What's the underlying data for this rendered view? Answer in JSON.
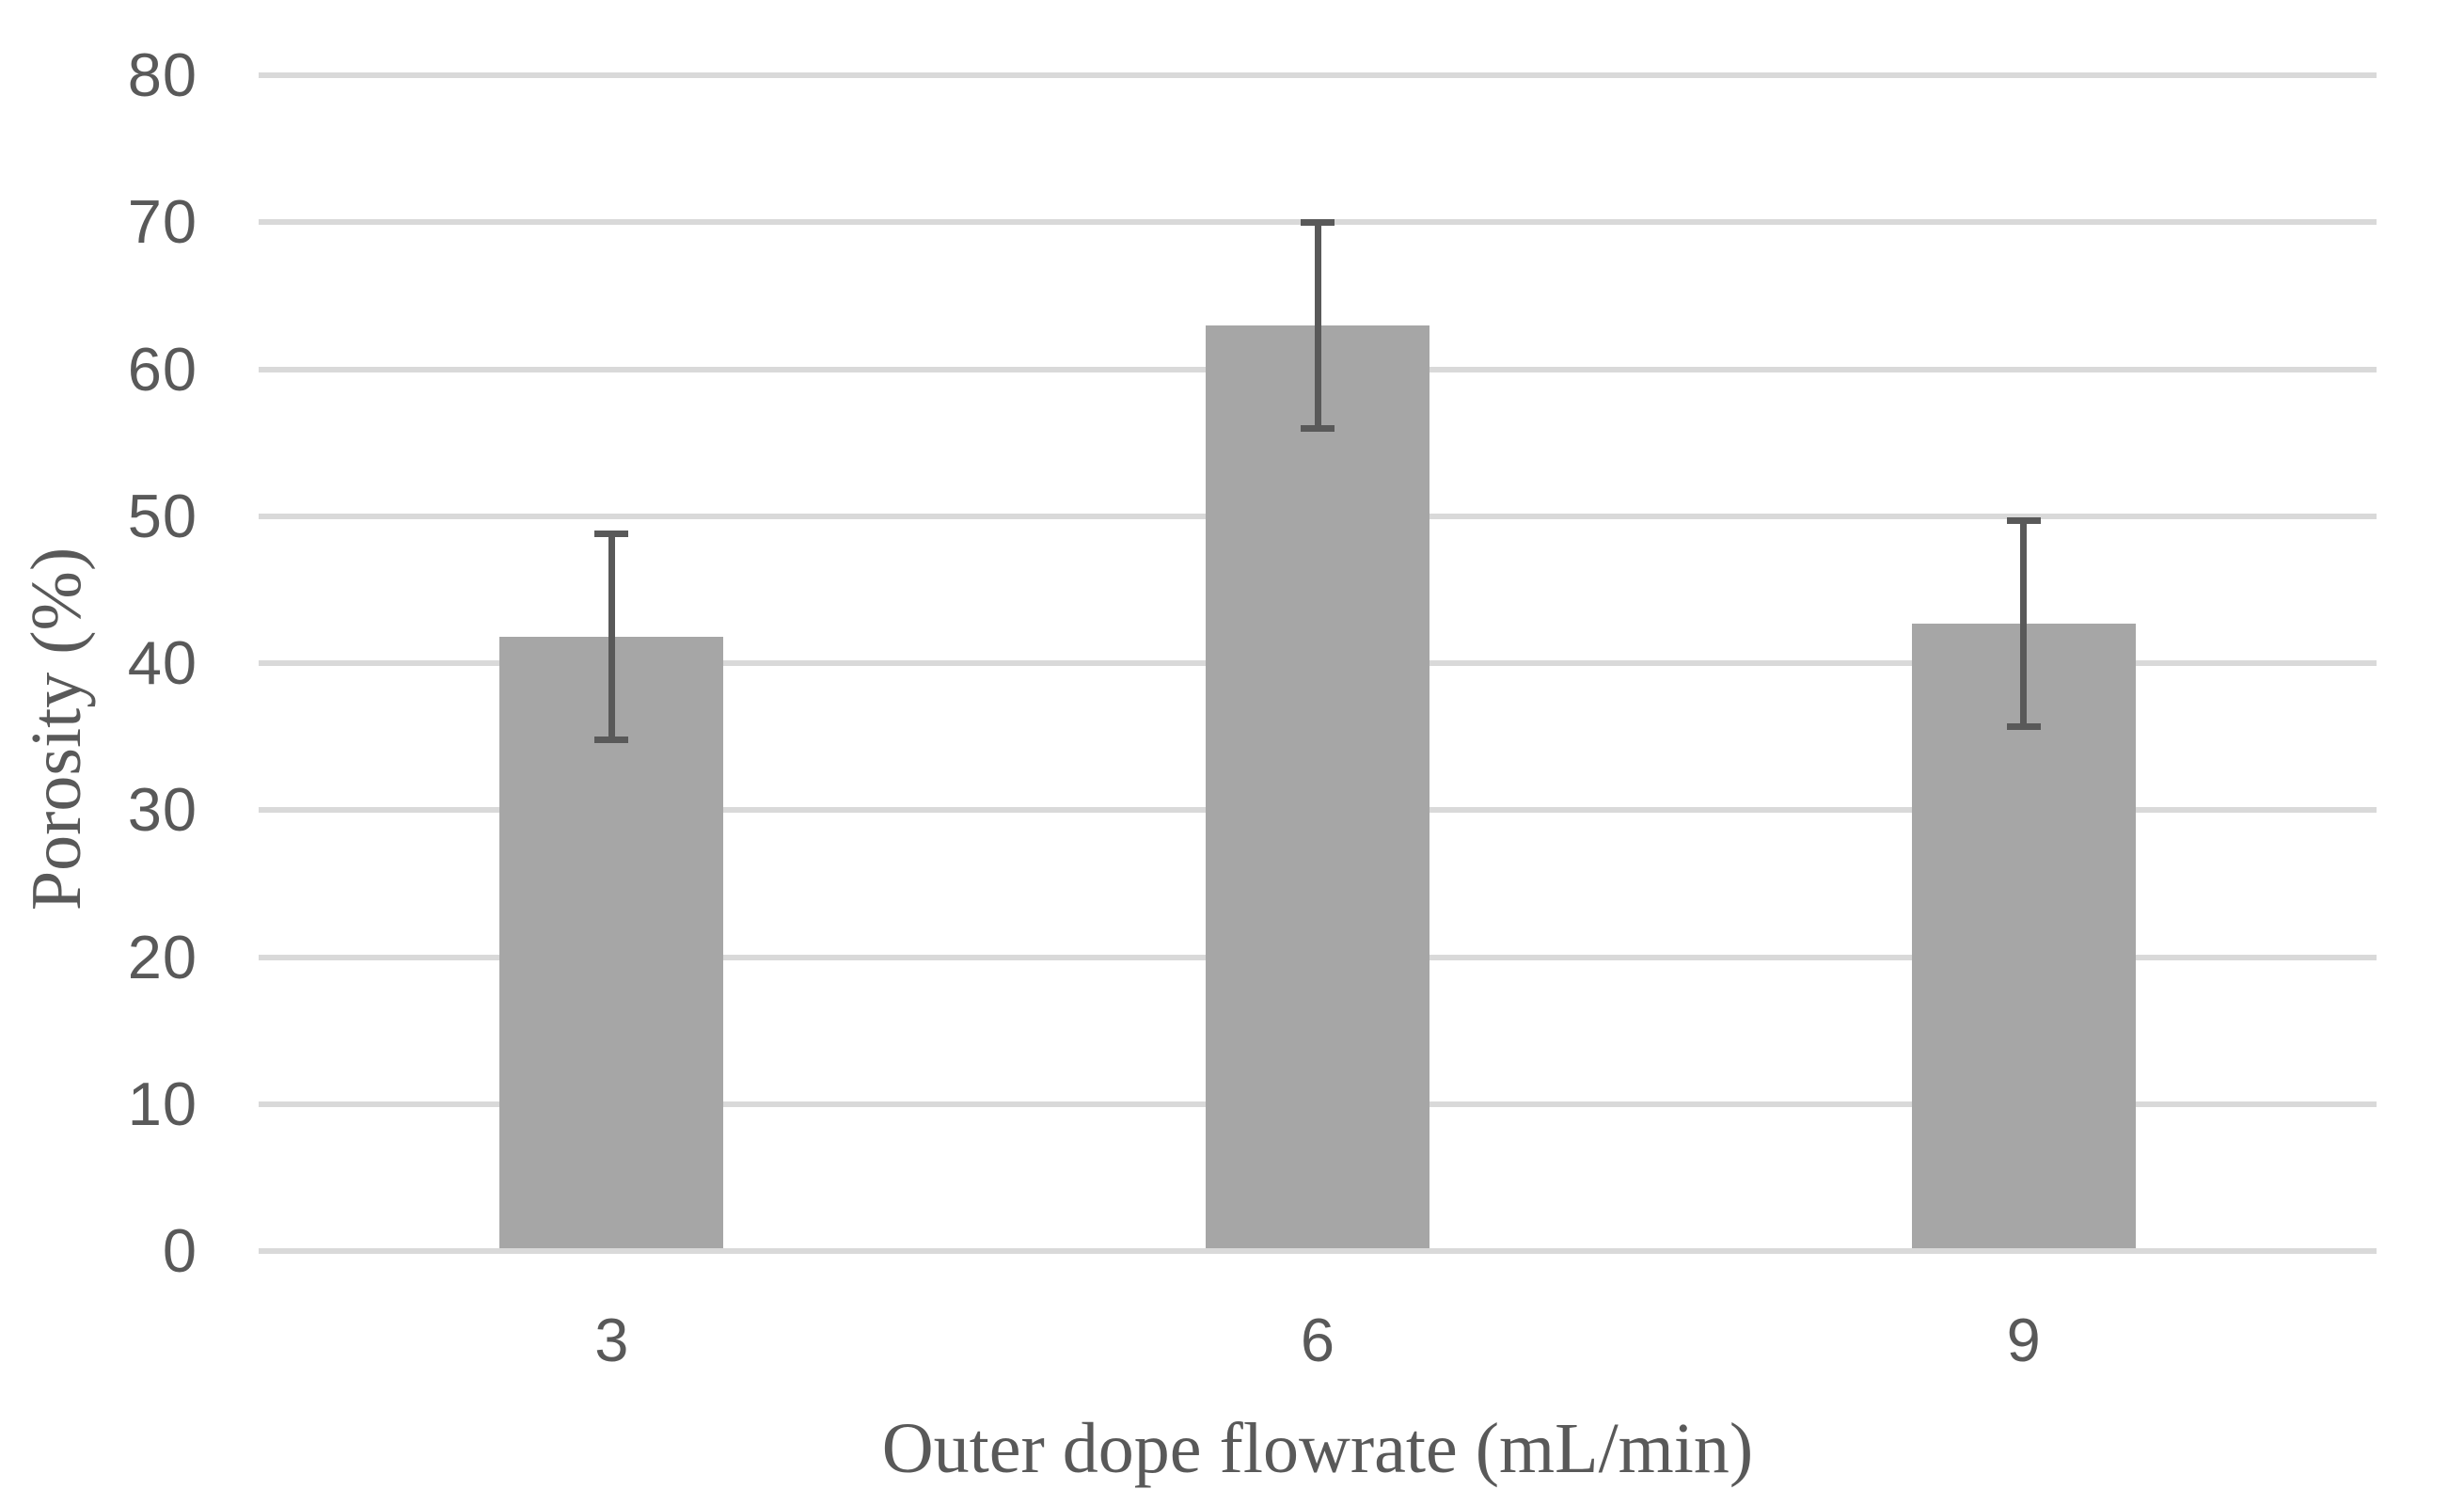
{
  "chart_data": {
    "type": "bar",
    "categories": [
      "3",
      "6",
      "9"
    ],
    "values": [
      41.8,
      63,
      42.7
    ],
    "error_y": [
      7,
      7,
      7
    ],
    "title": "",
    "xlabel": "Outer dope flowrate (mL/min)",
    "ylabel": "Porosity (%)",
    "ylim": [
      0,
      80
    ],
    "ytick_step": 10,
    "ytick_labels": [
      "0",
      "10",
      "20",
      "30",
      "40",
      "50",
      "60",
      "70",
      "80"
    ],
    "grid": "horizontal",
    "legend": "none",
    "colors": {
      "bar": "#A6A6A6",
      "error_bar": "#595959",
      "gridline": "#D9D9D9",
      "text": "#595959"
    }
  }
}
